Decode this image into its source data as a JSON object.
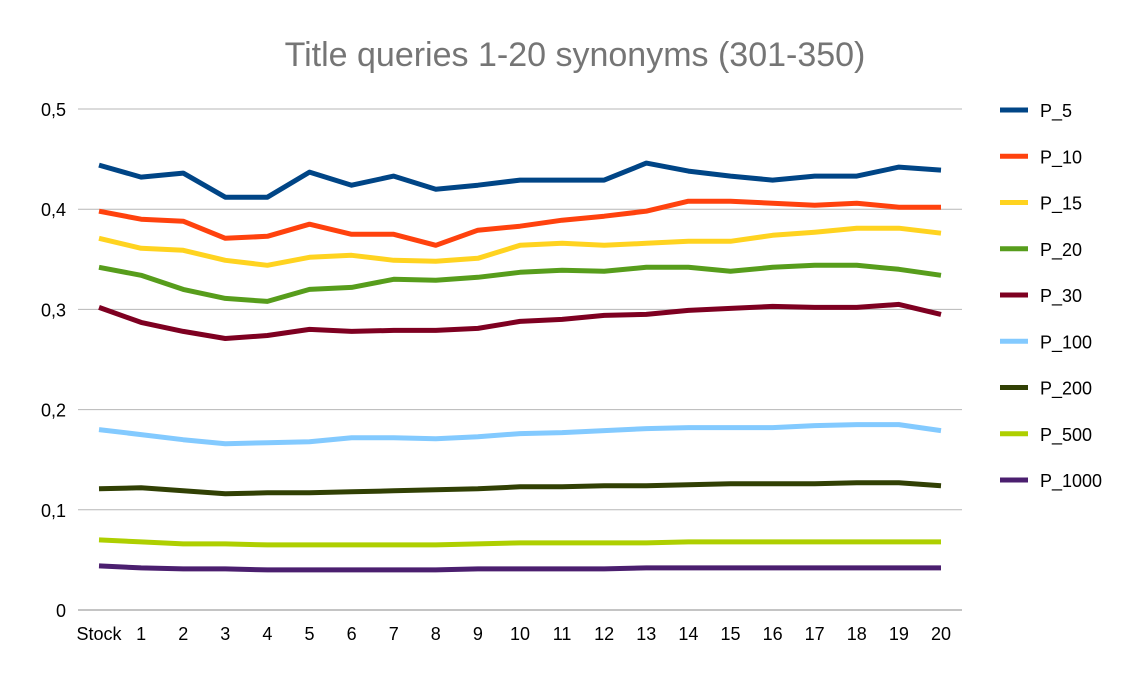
{
  "chart_data": {
    "type": "line",
    "title": "Title queries 1-20 synonyms (301-350)",
    "categories": [
      "Stock",
      "1",
      "2",
      "3",
      "4",
      "5",
      "6",
      "7",
      "8",
      "9",
      "10",
      "11",
      "12",
      "13",
      "14",
      "15",
      "16",
      "17",
      "18",
      "19",
      "20"
    ],
    "y_ticks": [
      "0",
      "0,1",
      "0,2",
      "0,3",
      "0,4",
      "0,5"
    ],
    "ylim": [
      0,
      0.5
    ],
    "grid": true,
    "legend_position": "right",
    "series": [
      {
        "name": "P_5",
        "color": "#004586",
        "values": [
          0.444,
          0.432,
          0.436,
          0.412,
          0.412,
          0.437,
          0.424,
          0.433,
          0.42,
          0.424,
          0.429,
          0.429,
          0.429,
          0.446,
          0.438,
          0.433,
          0.429,
          0.433,
          0.433,
          0.442,
          0.439
        ]
      },
      {
        "name": "P_10",
        "color": "#ff420e",
        "values": [
          0.398,
          0.39,
          0.388,
          0.371,
          0.373,
          0.385,
          0.375,
          0.375,
          0.364,
          0.379,
          0.383,
          0.389,
          0.393,
          0.398,
          0.408,
          0.408,
          0.406,
          0.404,
          0.406,
          0.402,
          0.402
        ]
      },
      {
        "name": "P_15",
        "color": "#ffd320",
        "values": [
          0.371,
          0.361,
          0.359,
          0.349,
          0.344,
          0.352,
          0.354,
          0.349,
          0.348,
          0.351,
          0.364,
          0.366,
          0.364,
          0.366,
          0.368,
          0.368,
          0.374,
          0.377,
          0.381,
          0.381,
          0.376
        ]
      },
      {
        "name": "P_20",
        "color": "#579d1c",
        "values": [
          0.342,
          0.334,
          0.32,
          0.311,
          0.308,
          0.32,
          0.322,
          0.33,
          0.329,
          0.332,
          0.337,
          0.339,
          0.338,
          0.342,
          0.342,
          0.338,
          0.342,
          0.344,
          0.344,
          0.34,
          0.334
        ]
      },
      {
        "name": "P_30",
        "color": "#7e0021",
        "values": [
          0.302,
          0.287,
          0.278,
          0.271,
          0.274,
          0.28,
          0.278,
          0.279,
          0.279,
          0.281,
          0.288,
          0.29,
          0.294,
          0.295,
          0.299,
          0.301,
          0.303,
          0.302,
          0.302,
          0.305,
          0.295
        ]
      },
      {
        "name": "P_100",
        "color": "#83caff",
        "values": [
          0.18,
          0.175,
          0.17,
          0.166,
          0.167,
          0.168,
          0.172,
          0.172,
          0.171,
          0.173,
          0.176,
          0.177,
          0.179,
          0.181,
          0.182,
          0.182,
          0.182,
          0.184,
          0.185,
          0.185,
          0.179
        ]
      },
      {
        "name": "P_200",
        "color": "#314004",
        "values": [
          0.121,
          0.122,
          0.119,
          0.116,
          0.117,
          0.117,
          0.118,
          0.119,
          0.12,
          0.121,
          0.123,
          0.123,
          0.124,
          0.124,
          0.125,
          0.126,
          0.126,
          0.126,
          0.127,
          0.127,
          0.124
        ]
      },
      {
        "name": "P_500",
        "color": "#aecf00",
        "values": [
          0.07,
          0.068,
          0.066,
          0.066,
          0.065,
          0.065,
          0.065,
          0.065,
          0.065,
          0.066,
          0.067,
          0.067,
          0.067,
          0.067,
          0.068,
          0.068,
          0.068,
          0.068,
          0.068,
          0.068,
          0.068
        ]
      },
      {
        "name": "P_1000",
        "color": "#4b1f6f",
        "values": [
          0.044,
          0.042,
          0.041,
          0.041,
          0.04,
          0.04,
          0.04,
          0.04,
          0.04,
          0.041,
          0.041,
          0.041,
          0.041,
          0.042,
          0.042,
          0.042,
          0.042,
          0.042,
          0.042,
          0.042,
          0.042
        ]
      }
    ]
  }
}
